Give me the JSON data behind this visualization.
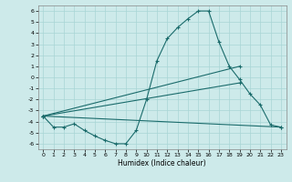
{
  "xlabel": "Humidex (Indice chaleur)",
  "xlim": [
    -0.5,
    23.5
  ],
  "ylim": [
    -6.5,
    6.5
  ],
  "xticks": [
    0,
    1,
    2,
    3,
    4,
    5,
    6,
    7,
    8,
    9,
    10,
    11,
    12,
    13,
    14,
    15,
    16,
    17,
    18,
    19,
    20,
    21,
    22,
    23
  ],
  "yticks": [
    -6,
    -5,
    -4,
    -3,
    -2,
    -1,
    0,
    1,
    2,
    3,
    4,
    5,
    6
  ],
  "background_color": "#cdeaea",
  "grid_color": "#a8d5d5",
  "line_color": "#1a6b6b",
  "curves": [
    {
      "x": [
        0,
        1,
        2,
        3,
        4,
        5,
        6,
        7,
        8,
        9,
        10,
        11,
        12,
        13,
        14,
        15,
        16,
        17,
        18,
        19,
        20,
        21,
        22,
        23
      ],
      "y": [
        -3.5,
        -4.5,
        -4.5,
        -4.2,
        -4.8,
        -5.3,
        -5.7,
        -6.0,
        -6.0,
        -4.8,
        -2.0,
        1.5,
        3.5,
        4.5,
        5.3,
        6.0,
        6.0,
        3.2,
        1.0,
        -0.2,
        -1.5,
        -2.5,
        -4.3,
        -4.5
      ]
    },
    {
      "x": [
        0,
        23
      ],
      "y": [
        -3.5,
        -4.5
      ]
    },
    {
      "x": [
        0,
        19
      ],
      "y": [
        -3.5,
        -0.5
      ]
    },
    {
      "x": [
        0,
        19
      ],
      "y": [
        -3.5,
        1.0
      ]
    }
  ],
  "marker_x_main": [
    0,
    1,
    2,
    3,
    4,
    5,
    6,
    7,
    8,
    9,
    10,
    11,
    12,
    13,
    14,
    15,
    16,
    17,
    18,
    19,
    20,
    21,
    22,
    23
  ],
  "marker_y_main": [
    -3.5,
    -4.5,
    -4.5,
    -4.2,
    -4.8,
    -5.3,
    -5.7,
    -6.0,
    -6.0,
    -4.8,
    -2.0,
    1.5,
    3.5,
    4.5,
    5.3,
    6.0,
    6.0,
    3.2,
    1.0,
    -0.2,
    -1.5,
    -2.5,
    -4.3,
    -4.5
  ]
}
